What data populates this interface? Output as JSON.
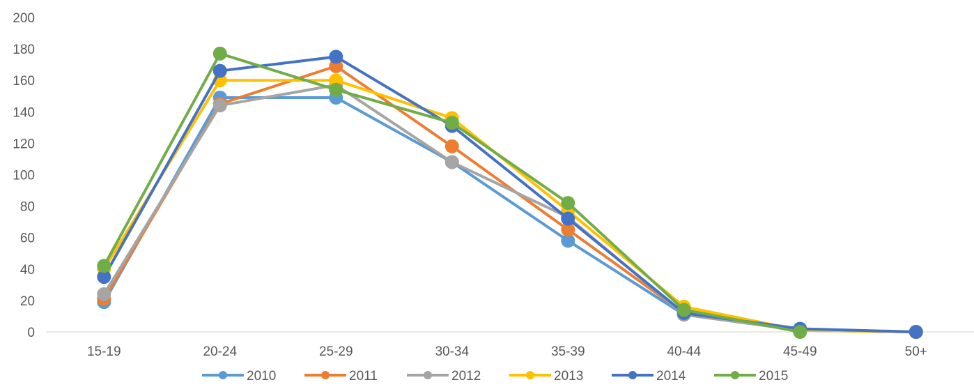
{
  "chart_data": {
    "type": "line",
    "title": "",
    "xlabel": "",
    "ylabel": "",
    "categories": [
      "15-19",
      "20-24",
      "25-29",
      "30-34",
      "35-39",
      "40-44",
      "45-49",
      "50+"
    ],
    "ylim": [
      0,
      200
    ],
    "yticks": [
      "0",
      "20",
      "40",
      "60",
      "80",
      "100",
      "120",
      "140",
      "160",
      "180",
      "200"
    ],
    "grid": false,
    "legend_position": "bottom",
    "series": [
      {
        "name": "2010",
        "color": "#5B9BD5",
        "values": [
          19,
          149,
          149,
          108,
          58,
          11,
          1,
          0
        ]
      },
      {
        "name": "2011",
        "color": "#ED7D31",
        "values": [
          21,
          145,
          169,
          118,
          65,
          12,
          1,
          0
        ]
      },
      {
        "name": "2012",
        "color": "#A5A5A5",
        "values": [
          24,
          144,
          157,
          108,
          73,
          11,
          1,
          0
        ]
      },
      {
        "name": "2013",
        "color": "#FFC000",
        "values": [
          40,
          160,
          160,
          136,
          77,
          16,
          1,
          0
        ]
      },
      {
        "name": "2014",
        "color": "#4472C4",
        "values": [
          35,
          166,
          175,
          131,
          72,
          12,
          2,
          0
        ]
      },
      {
        "name": "2015",
        "color": "#70AD47",
        "values": [
          42,
          177,
          154,
          133,
          82,
          14,
          0,
          null
        ]
      }
    ]
  }
}
